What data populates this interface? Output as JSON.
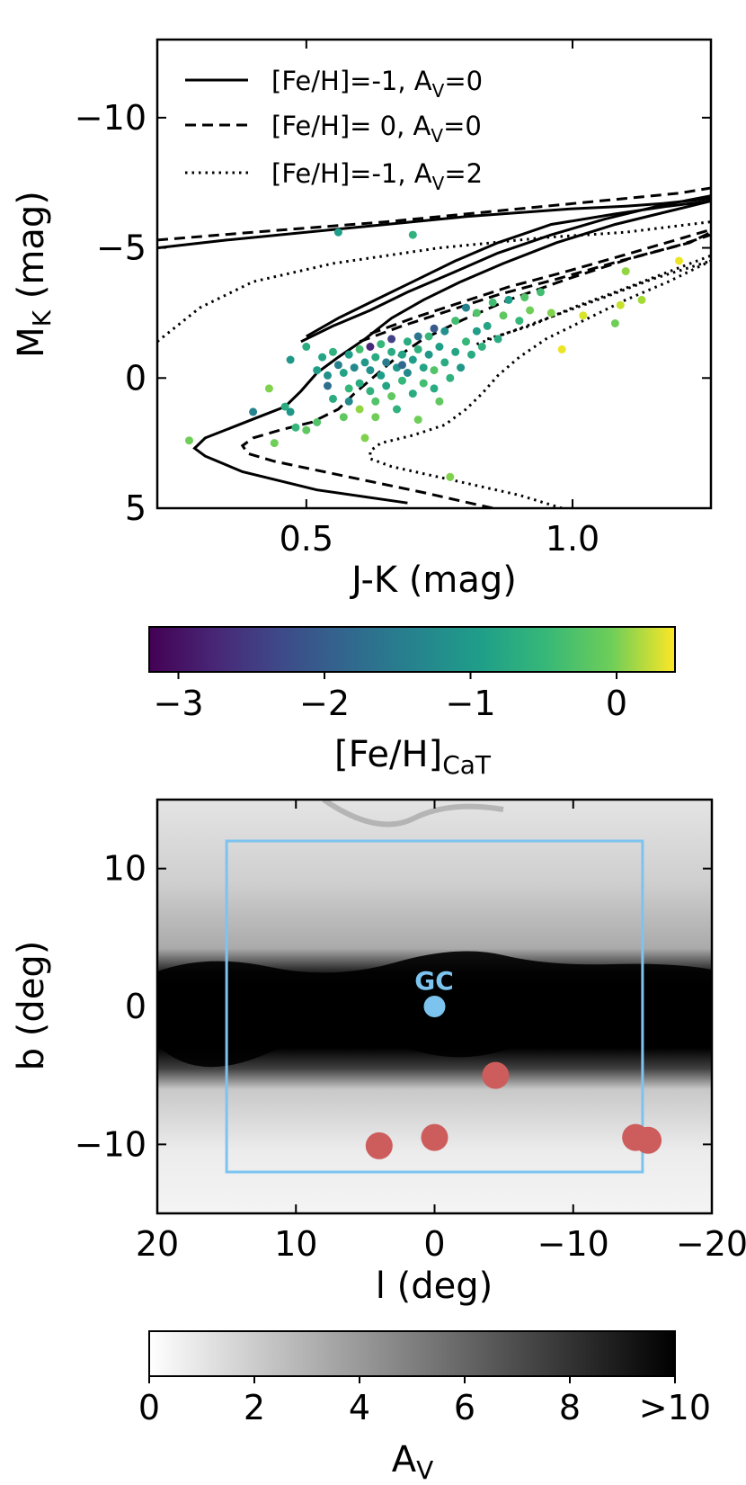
{
  "chart_data": [
    {
      "type": "scatter",
      "xlabel": "J-K (mag)",
      "ylabel_main": "M",
      "ylabel_sub": "K",
      "ylabel_unit": " (mag)",
      "xlim": [
        0.22,
        1.26
      ],
      "ylim": [
        5,
        -13
      ],
      "xticks": [
        "0.5",
        "1.0"
      ],
      "xtick_values": [
        0.5,
        1.0
      ],
      "yticks": [
        "−10",
        "−5",
        "0",
        "5"
      ],
      "ytick_values": [
        -10,
        -5,
        0,
        5
      ],
      "legend": [
        {
          "style": "solid",
          "text_pre": "[Fe/H]=-1, A",
          "text_sub": "V",
          "text_post": "=0"
        },
        {
          "style": "dashed",
          "text_pre": "[Fe/H]= 0, A",
          "text_sub": "V",
          "text_post": "=0"
        },
        {
          "style": "dotted",
          "text_pre": "[Fe/H]=-1, A",
          "text_sub": "V",
          "text_post": "=2"
        }
      ],
      "legend_position": "top-left",
      "series": [
        {
          "style": "solid",
          "points": [
            [
              0.69,
              4.8
            ],
            [
              0.52,
              4.3
            ],
            [
              0.38,
              3.6
            ],
            [
              0.31,
              3.0
            ],
            [
              0.29,
              2.7
            ],
            [
              0.31,
              2.3
            ],
            [
              0.36,
              1.9
            ],
            [
              0.41,
              1.5
            ],
            [
              0.46,
              1.1
            ],
            [
              0.49,
              0.5
            ],
            [
              0.52,
              -0.2
            ],
            [
              0.56,
              -0.8
            ],
            [
              0.61,
              -1.5
            ],
            [
              0.66,
              -2.3
            ],
            [
              0.72,
              -3.0
            ],
            [
              0.79,
              -3.7
            ],
            [
              0.87,
              -4.4
            ],
            [
              0.97,
              -5.2
            ],
            [
              1.08,
              -5.9
            ],
            [
              1.18,
              -6.4
            ],
            [
              1.26,
              -6.8
            ]
          ]
        },
        {
          "style": "solid",
          "points": [
            [
              0.5,
              -1.6
            ],
            [
              0.56,
              -2.3
            ],
            [
              0.63,
              -3.0
            ],
            [
              0.7,
              -3.7
            ],
            [
              0.78,
              -4.5
            ],
            [
              0.86,
              -5.2
            ],
            [
              0.96,
              -5.9
            ],
            [
              1.08,
              -6.3
            ],
            [
              1.18,
              -6.6
            ],
            [
              1.26,
              -6.8
            ]
          ]
        },
        {
          "style": "solid",
          "points": [
            [
              0.49,
              -1.4
            ],
            [
              0.55,
              -2.0
            ],
            [
              0.62,
              -2.6
            ],
            [
              0.69,
              -3.3
            ],
            [
              0.77,
              -4.0
            ],
            [
              0.86,
              -4.8
            ],
            [
              0.96,
              -5.5
            ],
            [
              1.06,
              -6.1
            ],
            [
              1.16,
              -6.6
            ],
            [
              1.26,
              -7.0
            ]
          ]
        },
        {
          "style": "solid",
          "points": [
            [
              0.22,
              -5.0
            ],
            [
              0.35,
              -5.3
            ],
            [
              0.55,
              -5.7
            ],
            [
              0.8,
              -6.2
            ],
            [
              1.0,
              -6.5
            ],
            [
              1.1,
              -6.6
            ],
            [
              1.17,
              -6.7
            ],
            [
              1.26,
              -6.9
            ]
          ]
        },
        {
          "style": "dashed",
          "points": [
            [
              0.85,
              5.0
            ],
            [
              0.72,
              4.4
            ],
            [
              0.58,
              3.8
            ],
            [
              0.44,
              3.2
            ],
            [
              0.39,
              2.9
            ],
            [
              0.38,
              2.6
            ],
            [
              0.4,
              2.3
            ],
            [
              0.45,
              2.0
            ],
            [
              0.51,
              1.7
            ],
            [
              0.56,
              1.2
            ],
            [
              0.59,
              0.6
            ],
            [
              0.63,
              -0.1
            ],
            [
              0.67,
              -0.8
            ],
            [
              0.72,
              -1.5
            ],
            [
              0.79,
              -2.2
            ],
            [
              0.88,
              -3.0
            ],
            [
              0.99,
              -3.8
            ],
            [
              1.11,
              -4.6
            ],
            [
              1.22,
              -5.2
            ],
            [
              1.26,
              -5.6
            ]
          ]
        },
        {
          "style": "dashed",
          "points": [
            [
              0.62,
              -1.7
            ],
            [
              0.7,
              -2.3
            ],
            [
              0.79,
              -2.9
            ],
            [
              0.88,
              -3.5
            ],
            [
              0.99,
              -4.1
            ],
            [
              1.11,
              -4.8
            ],
            [
              1.21,
              -5.4
            ],
            [
              1.26,
              -5.7
            ]
          ]
        },
        {
          "style": "dashed",
          "points": [
            [
              0.6,
              -1.4
            ],
            [
              0.68,
              -2.0
            ],
            [
              0.77,
              -2.6
            ],
            [
              0.86,
              -3.2
            ],
            [
              0.97,
              -3.8
            ],
            [
              1.09,
              -4.5
            ],
            [
              1.2,
              -5.1
            ],
            [
              1.26,
              -5.5
            ]
          ]
        },
        {
          "style": "dashed",
          "points": [
            [
              0.22,
              -5.3
            ],
            [
              0.4,
              -5.6
            ],
            [
              0.65,
              -6.0
            ],
            [
              0.9,
              -6.5
            ],
            [
              1.1,
              -6.9
            ],
            [
              1.2,
              -7.1
            ],
            [
              1.26,
              -7.3
            ]
          ]
        },
        {
          "style": "dotted",
          "points": [
            [
              0.98,
              5.0
            ],
            [
              0.9,
              4.5
            ],
            [
              0.77,
              3.9
            ],
            [
              0.66,
              3.4
            ],
            [
              0.62,
              3.1
            ],
            [
              0.62,
              2.8
            ],
            [
              0.64,
              2.5
            ],
            [
              0.7,
              2.2
            ],
            [
              0.76,
              1.8
            ],
            [
              0.8,
              1.2
            ],
            [
              0.83,
              0.6
            ],
            [
              0.86,
              -0.1
            ],
            [
              0.9,
              -0.8
            ],
            [
              0.95,
              -1.5
            ],
            [
              1.02,
              -2.2
            ],
            [
              1.1,
              -3.0
            ],
            [
              1.18,
              -3.7
            ],
            [
              1.26,
              -4.5
            ]
          ]
        },
        {
          "style": "dotted",
          "points": [
            [
              0.84,
              -1.5
            ],
            [
              0.92,
              -2.0
            ],
            [
              1.0,
              -2.7
            ],
            [
              1.08,
              -3.3
            ],
            [
              1.17,
              -4.0
            ],
            [
              1.26,
              -4.7
            ]
          ]
        },
        {
          "style": "dotted",
          "points": [
            [
              0.82,
              -1.3
            ],
            [
              0.9,
              -1.9
            ],
            [
              0.98,
              -2.5
            ],
            [
              1.06,
              -3.1
            ],
            [
              1.15,
              -3.8
            ],
            [
              1.26,
              -4.5
            ]
          ]
        },
        {
          "style": "dotted",
          "points": [
            [
              0.22,
              -1.4
            ],
            [
              0.3,
              -2.7
            ],
            [
              0.4,
              -3.7
            ],
            [
              0.55,
              -4.4
            ],
            [
              0.75,
              -5.0
            ],
            [
              0.95,
              -5.4
            ],
            [
              1.1,
              -5.6
            ],
            [
              1.26,
              -6.0
            ]
          ]
        }
      ],
      "points": [
        [
          0.28,
          2.4,
          -0.4
        ],
        [
          0.4,
          1.3,
          -1.6
        ],
        [
          0.43,
          0.4,
          -0.3
        ],
        [
          0.44,
          2.5,
          -0.4
        ],
        [
          0.46,
          1.1,
          -1.0
        ],
        [
          0.47,
          -0.7,
          -1.3
        ],
        [
          0.48,
          1.9,
          -0.8
        ],
        [
          0.5,
          2.0,
          -0.5
        ],
        [
          0.5,
          -1.2,
          -1.0
        ],
        [
          0.52,
          -0.3,
          -1.2
        ],
        [
          0.53,
          -0.8,
          -1.1
        ],
        [
          0.54,
          -0.1,
          -1.4
        ],
        [
          0.55,
          0.8,
          -1.0
        ],
        [
          0.55,
          -1.0,
          -0.9
        ],
        [
          0.56,
          -0.5,
          -1.6
        ],
        [
          0.57,
          1.5,
          -0.5
        ],
        [
          0.57,
          -0.2,
          -1.1
        ],
        [
          0.58,
          0.4,
          -0.8
        ],
        [
          0.58,
          -0.9,
          -1.2
        ],
        [
          0.59,
          -0.4,
          -1.5
        ],
        [
          0.6,
          0.2,
          -1.0
        ],
        [
          0.6,
          -1.1,
          -0.7
        ],
        [
          0.61,
          -0.6,
          -1.3
        ],
        [
          0.61,
          2.3,
          -0.3
        ],
        [
          0.62,
          0.5,
          -0.9
        ],
        [
          0.62,
          -0.3,
          -1.4
        ],
        [
          0.63,
          -0.8,
          -1.0
        ],
        [
          0.63,
          0.9,
          -0.6
        ],
        [
          0.64,
          -0.1,
          -1.2
        ],
        [
          0.64,
          -1.3,
          -0.8
        ],
        [
          0.65,
          0.3,
          -1.1
        ],
        [
          0.65,
          -0.6,
          -1.7
        ],
        [
          0.66,
          -1.0,
          -1.0
        ],
        [
          0.66,
          0.7,
          -0.5
        ],
        [
          0.67,
          -0.4,
          -1.3
        ],
        [
          0.67,
          1.2,
          -0.9
        ],
        [
          0.68,
          -0.9,
          -1.1
        ],
        [
          0.68,
          0.1,
          -0.8
        ],
        [
          0.69,
          -1.4,
          -1.0
        ],
        [
          0.69,
          -0.2,
          -1.5
        ],
        [
          0.7,
          0.6,
          -1.0
        ],
        [
          0.7,
          -0.7,
          -1.2
        ],
        [
          0.71,
          -1.1,
          -0.9
        ],
        [
          0.71,
          1.6,
          -0.4
        ],
        [
          0.72,
          -0.4,
          -1.1
        ],
        [
          0.72,
          0.2,
          -0.7
        ],
        [
          0.73,
          -0.9,
          -1.3
        ],
        [
          0.73,
          -1.6,
          -0.8
        ],
        [
          0.74,
          0.4,
          -1.0
        ],
        [
          0.74,
          -0.3,
          -0.6
        ],
        [
          0.75,
          -1.2,
          -1.2
        ],
        [
          0.75,
          0.9,
          -0.5
        ],
        [
          0.76,
          -0.6,
          -1.0
        ],
        [
          0.76,
          -1.8,
          -1.4
        ],
        [
          0.77,
          0.0,
          -0.9
        ],
        [
          0.77,
          3.8,
          -0.3
        ],
        [
          0.78,
          -1.0,
          -1.1
        ],
        [
          0.78,
          -2.2,
          -0.7
        ],
        [
          0.79,
          -0.4,
          -1.3
        ],
        [
          0.8,
          -1.4,
          -0.8
        ],
        [
          0.8,
          -2.7,
          -1.6
        ],
        [
          0.81,
          -0.9,
          -1.0
        ],
        [
          0.82,
          -1.8,
          -1.2
        ],
        [
          0.82,
          -2.5,
          -0.6
        ],
        [
          0.83,
          -1.2,
          -0.9
        ],
        [
          0.84,
          -2.0,
          -1.1
        ],
        [
          0.85,
          -2.9,
          -0.7
        ],
        [
          0.86,
          -1.5,
          -1.0
        ],
        [
          0.87,
          -2.4,
          -0.5
        ],
        [
          0.88,
          -3.0,
          -1.2
        ],
        [
          0.9,
          -2.2,
          -0.8
        ],
        [
          0.91,
          -3.1,
          -0.6
        ],
        [
          0.92,
          -2.6,
          -0.4
        ],
        [
          0.94,
          -3.3,
          -0.7
        ],
        [
          0.96,
          -2.5,
          -0.3
        ],
        [
          0.98,
          -1.1,
          0.3
        ],
        [
          1.02,
          -2.4,
          0.2
        ],
        [
          1.08,
          -2.1,
          -0.4
        ],
        [
          1.09,
          -2.8,
          0.1
        ],
        [
          1.1,
          -4.1,
          -0.2
        ],
        [
          1.13,
          -3.0,
          -0.1
        ],
        [
          1.2,
          -4.5,
          0.3
        ],
        [
          0.56,
          -5.6,
          -1.2
        ],
        [
          0.7,
          -5.5,
          -0.9
        ],
        [
          0.6,
          1.2,
          -0.2
        ],
        [
          0.63,
          1.5,
          -0.4
        ],
        [
          0.52,
          1.7,
          -0.6
        ],
        [
          0.58,
          0.9,
          -1.5
        ],
        [
          0.66,
          -1.5,
          -2.5
        ],
        [
          0.74,
          -1.9,
          -2.2
        ],
        [
          0.62,
          -1.2,
          -2.8
        ],
        [
          0.68,
          -0.5,
          -2.0
        ],
        [
          0.71,
          -1.6,
          -1.8
        ],
        [
          0.54,
          0.3,
          -1.9
        ],
        [
          0.47,
          1.3,
          -1.3
        ]
      ]
    },
    {
      "type": "heatmap",
      "title": "Colorbar",
      "xlabel_main": "[Fe/H]",
      "xlabel_sub": "CaT",
      "range": [
        -3.2,
        0.4
      ],
      "ticks": [
        "−3",
        "−2",
        "−1",
        "0"
      ],
      "tick_values": [
        -3,
        -2,
        -1,
        0
      ],
      "colormap": "viridis"
    },
    {
      "type": "heatmap",
      "xlabel": "l (deg)",
      "ylabel": "b (deg)",
      "xlim": [
        20,
        -20
      ],
      "ylim": [
        -15,
        15
      ],
      "xticks": [
        "−20",
        "−10",
        "0",
        "10",
        "20"
      ],
      "xtick_values": [
        -20,
        -10,
        0,
        10,
        20
      ],
      "yticks": [
        "10",
        "0",
        "−10"
      ],
      "ytick_values": [
        10,
        0,
        -10
      ],
      "box": {
        "l": [
          15,
          -15
        ],
        "b": [
          -12,
          12
        ],
        "color": "#7cc4ef"
      },
      "gc_label": "GC",
      "gc_point": {
        "l": 0,
        "b": 0,
        "color": "#7cc4ef"
      },
      "fields": {
        "color": "#cd5c5c",
        "points": [
          [
            -4.4,
            -5.0
          ],
          [
            0.0,
            -9.5
          ],
          [
            4.0,
            -10.1
          ],
          [
            -14.5,
            -9.5
          ],
          [
            -15.4,
            -9.7
          ]
        ]
      }
    },
    {
      "type": "heatmap",
      "title": "Colorbar",
      "xlabel_main": "A",
      "xlabel_sub": "V",
      "range": [
        0,
        10
      ],
      "ticks": [
        "0",
        "2",
        "4",
        "6",
        "8",
        ">10"
      ],
      "tick_values": [
        0,
        2,
        4,
        6,
        8,
        10
      ],
      "colormap": "Greys"
    }
  ]
}
